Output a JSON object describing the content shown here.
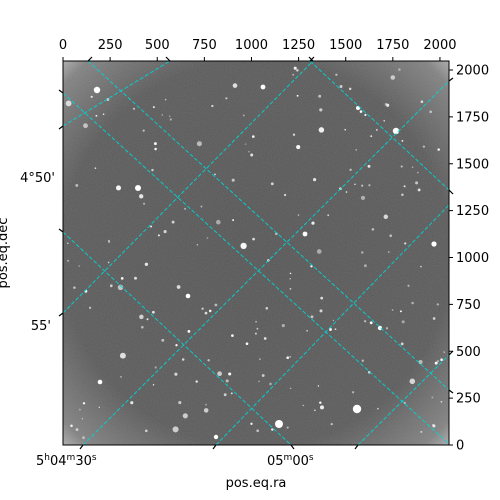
{
  "chart_data": {
    "type": "image",
    "image_size": [
      2048,
      2048
    ],
    "pixel_axes": {
      "top_ticks": [
        0,
        250,
        500,
        750,
        1000,
        1250,
        1500,
        1750,
        2000
      ],
      "right_ticks": [
        0,
        250,
        500,
        750,
        1000,
        1250,
        1500,
        1750,
        2000
      ]
    },
    "world_axes": {
      "xlabel": "pos.eq.ra",
      "ylabel": "pos.eq.dec",
      "ra_ticks": [
        {
          "label_h": "5",
          "label_m": "04",
          "label_s": "30",
          "ra_sec": 30
        },
        {
          "label_h": "",
          "label_m": "05",
          "label_s": "00",
          "ra_sec": 60
        }
      ],
      "dec_ticks": [
        {
          "label": "4°50'",
          "dec_arcmin": 50
        },
        {
          "label": "55'",
          "dec_arcmin": 55
        }
      ]
    },
    "grid": {
      "on": true,
      "color": "#00d5d5",
      "style": "dashed"
    },
    "colormap": "gray"
  }
}
